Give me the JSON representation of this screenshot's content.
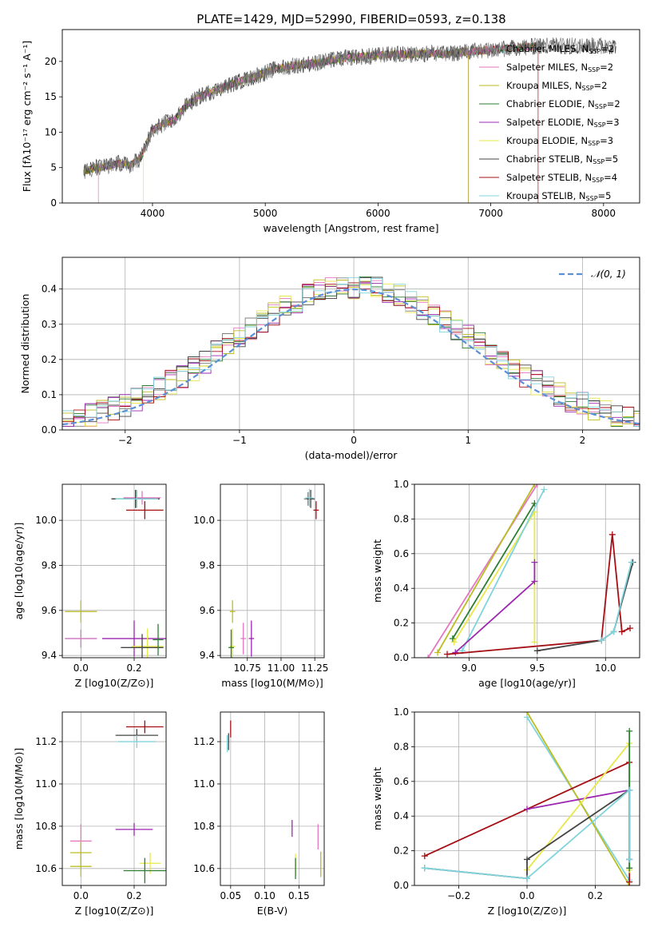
{
  "figure": {
    "title": "PLATE=1429, MJD=52990, FIBERID=0593, z=0.138"
  },
  "legend_entries": [
    {
      "name": "Chabrier MILES, N_SSP=2",
      "label": "Chabrier MILES, N",
      "nssp": "=2",
      "color": "#7f7f7f"
    },
    {
      "name": "Salpeter MILES, N_SSP=2",
      "label": "Salpeter MILES, N",
      "nssp": "=2",
      "color": "#e377c2"
    },
    {
      "name": "Kroupa MILES, N_SSP=2",
      "label": "Kroupa MILES, N",
      "nssp": "=2",
      "color": "#bcbd22"
    },
    {
      "name": "Chabrier ELODIE, N_SSP=2",
      "label": "Chabrier ELODIE, N",
      "nssp": "=2",
      "color": "#2e7d32"
    },
    {
      "name": "Salpeter ELODIE, N_SSP=3",
      "label": "Salpeter ELODIE, N",
      "nssp": "=3",
      "color": "#9c27b0"
    },
    {
      "name": "Kroupa ELODIE, N_SSP=3",
      "label": "Kroupa ELODIE, N",
      "nssp": "=3",
      "color": "#e8e84a"
    },
    {
      "name": "Chabrier STELIB, N_SSP=5",
      "label": "Chabrier STELIB, N",
      "nssp": "=5",
      "color": "#444444"
    },
    {
      "name": "Salpeter STELIB, N_SSP=4",
      "label": "Salpeter STELIB, N",
      "nssp": "=4",
      "color": "#a50f15"
    },
    {
      "name": "Kroupa STELIB, N_SSP=5",
      "label": "Kroupa STELIB, N",
      "nssp": "=5",
      "color": "#80d4dc"
    }
  ],
  "chart_data": [
    {
      "id": "spectrum",
      "type": "line",
      "xlabel": "wavelength [Angstrom, rest frame]",
      "ylabel": "Flux [fλ10⁻¹⁷ erg cm⁻² s⁻¹ A⁻¹]",
      "xlim": [
        3200,
        8320
      ],
      "ylim": [
        0,
        24.5
      ],
      "xticks": [
        4000,
        5000,
        6000,
        7000,
        8000
      ],
      "yticks": [
        0,
        5,
        10,
        15,
        20
      ],
      "continuum": {
        "x": [
          3400,
          3500,
          3600,
          3700,
          3800,
          3900,
          3950,
          4000,
          4100,
          4200,
          4300,
          4400,
          4500,
          4700,
          4900,
          5100,
          5300,
          5500,
          5700,
          5900,
          6100,
          6300,
          6500,
          6600,
          6800,
          7000,
          7200,
          7400,
          7500
        ],
        "y": [
          4.5,
          5.0,
          5.2,
          5.6,
          5.3,
          6.5,
          8.5,
          10.3,
          11.2,
          11.8,
          13.8,
          14.9,
          15.6,
          16.8,
          17.8,
          19.0,
          19.5,
          19.9,
          20.5,
          20.7,
          21.0,
          21.0,
          21.2,
          21.0,
          21.4,
          21.6,
          21.9,
          22.1,
          22.2
        ]
      },
      "observed_extent": [
        3390,
        8110
      ],
      "model_cutoffs": [
        {
          "series": "Kroupa ELODIE",
          "x": 3920
        },
        {
          "series": "Salpeter MILES",
          "x": 3520
        },
        {
          "series": "Kroupa MILES",
          "x": 6800
        },
        {
          "series": "Salpeter ELODIE",
          "x": 6800
        },
        {
          "series": "Salpeter STELIB",
          "x": 7420
        }
      ]
    },
    {
      "id": "residuals",
      "type": "line",
      "xlabel": "(data-model)/error",
      "ylabel": "Normed distribution",
      "xlim": [
        -2.55,
        2.5
      ],
      "ylim": [
        0,
        0.49
      ],
      "xticks": [
        -2,
        -1,
        0,
        1,
        2
      ],
      "yticks": [
        0.0,
        0.1,
        0.2,
        0.3,
        0.4
      ],
      "legend": "𝒩(0, 1)",
      "reference": {
        "name": "N(0,1)",
        "mean": 0,
        "sigma": 1
      },
      "histogram_bins": {
        "start": -2.55,
        "width": 0.1,
        "count": 51
      }
    },
    {
      "id": "age_vs_Z",
      "type": "scatter",
      "xlabel": "Z [log10(Z/Z⊙)]",
      "ylabel": "age  [log10(age/yr)]",
      "xlim": [
        -0.07,
        0.32
      ],
      "ylim": [
        9.39,
        10.16
      ],
      "xticks": [
        0.0,
        0.2
      ],
      "yticks": [
        9.4,
        9.6,
        9.8,
        10.0
      ],
      "points": [
        {
          "series": "Chabrier MILES",
          "x": 0.205,
          "xerr": 0.09,
          "y": 10.095,
          "yerr": 0.04
        },
        {
          "series": "Salpeter MILES",
          "x": 0.23,
          "xerr": 0.07,
          "y": 10.1,
          "yerr": 0.03
        },
        {
          "series": "Chabrier ELODIE",
          "x": 0.205,
          "xerr": 0.09,
          "y": 10.095,
          "yerr": 0.04
        },
        {
          "series": "Chabrier STELIB",
          "x": 0.205,
          "xerr": 0.09,
          "y": 10.095,
          "yerr": 0.04
        },
        {
          "series": "Kroupa STELIB",
          "x": 0.21,
          "xerr": 0.08,
          "y": 10.095,
          "yerr": 0.04
        },
        {
          "series": "Salpeter STELIB",
          "x": 0.24,
          "xerr": 0.07,
          "y": 10.045,
          "yerr": 0.04
        },
        {
          "series": "Kroupa MILES",
          "x": 0.0,
          "xerr": 0.06,
          "y": 9.595,
          "yerr": 0.05
        },
        {
          "series": "Salpeter ELODIE",
          "x": 0.2,
          "xerr": 0.12,
          "y": 9.475,
          "yerr": 0.08
        },
        {
          "series": "Kroupa ELODIE",
          "x": 0.25,
          "xerr": 0.06,
          "y": 9.44,
          "yerr": 0.08
        },
        {
          "series": "Chabrier STELIB",
          "x": 0.23,
          "xerr": 0.08,
          "y": 9.435,
          "yerr": 0.06
        },
        {
          "series": "Kroupa STELIB",
          "x": 0.0,
          "xerr": 0.06,
          "y": 9.475,
          "yerr": 0.04
        },
        {
          "series": "Chabrier ELODIE",
          "x": 0.29,
          "xerr": 0.02,
          "y": 9.47,
          "yerr": 0.07
        },
        {
          "series": "Salpeter MILES",
          "x": 0.0,
          "xerr": 0.06,
          "y": 9.475,
          "yerr": 0.04
        }
      ]
    },
    {
      "id": "age_vs_mass",
      "type": "scatter",
      "xlabel": "mass [log10(M/M⊙)]",
      "xlim": [
        10.55,
        11.32
      ],
      "ylim": [
        9.39,
        10.16
      ],
      "xticks": [
        10.75,
        11.0,
        11.25
      ],
      "xticklabels": [
        "10.75",
        "11.00",
        "11.25"
      ],
      "yticks": [
        9.4,
        9.6,
        9.8,
        10.0
      ],
      "points": [
        {
          "series": "Chabrier MILES",
          "x": 11.2,
          "xerr": 0.03,
          "y": 10.095,
          "yerr": 0.03
        },
        {
          "series": "Chabrier STELIB",
          "x": 11.22,
          "xerr": 0.03,
          "y": 10.095,
          "yerr": 0.04
        },
        {
          "series": "Kroupa STELIB",
          "x": 11.21,
          "xerr": 0.03,
          "y": 10.1,
          "yerr": 0.04
        },
        {
          "series": "Salpeter STELIB",
          "x": 11.26,
          "xerr": 0.02,
          "y": 10.045,
          "yerr": 0.04
        },
        {
          "series": "Kroupa MILES",
          "x": 10.64,
          "xerr": 0.02,
          "y": 9.595,
          "yerr": 0.05
        },
        {
          "series": "Salpeter ELODIE",
          "x": 10.78,
          "xerr": 0.02,
          "y": 9.475,
          "yerr": 0.08
        },
        {
          "series": "Kroupa ELODIE",
          "x": 10.64,
          "xerr": 0.02,
          "y": 9.44,
          "yerr": 0.08
        },
        {
          "series": "Chabrier ELODIE",
          "x": 10.63,
          "xerr": 0.02,
          "y": 9.435,
          "yerr": 0.08
        },
        {
          "series": "Salpeter MILES",
          "x": 10.72,
          "xerr": 0.02,
          "y": 9.475,
          "yerr": 0.07
        }
      ]
    },
    {
      "id": "weight_vs_age",
      "type": "line",
      "xlabel": "age  [log10(age/yr)]",
      "ylabel": "mass weight",
      "xlim": [
        8.6,
        10.25
      ],
      "ylim": [
        0,
        1.0
      ],
      "xticks": [
        9.0,
        9.5,
        10.0
      ],
      "yticks": [
        0.0,
        0.2,
        0.4,
        0.6,
        0.8,
        1.0
      ],
      "series": [
        {
          "name": "Salpeter MILES",
          "x": [
            8.7,
            9.5
          ],
          "y": [
            0.0,
            1.0
          ]
        },
        {
          "name": "Kroupa MILES",
          "x": [
            8.77,
            9.48
          ],
          "y": [
            0.03,
            1.0
          ]
        },
        {
          "name": "Chabrier ELODIE",
          "x": [
            8.88,
            9.48
          ],
          "y": [
            0.11,
            0.89
          ]
        },
        {
          "name": "Kroupa ELODIE",
          "x": [
            8.89,
            9.48,
            9.48
          ],
          "y": [
            0.09,
            0.84,
            0.09
          ]
        },
        {
          "name": "Kroupa STELIB",
          "x": [
            8.95,
            9.55
          ],
          "y": [
            0.04,
            0.97
          ]
        },
        {
          "name": "Salpeter ELODIE",
          "x": [
            8.9,
            9.48,
            9.48
          ],
          "y": [
            0.03,
            0.44,
            0.55
          ]
        },
        {
          "name": "Salpeter STELIB",
          "x": [
            8.84,
            9.97,
            10.05,
            10.12,
            10.18
          ],
          "y": [
            0.02,
            0.1,
            0.71,
            0.15,
            0.17
          ]
        },
        {
          "name": "Chabrier STELIB",
          "x": [
            9.5,
            9.97,
            10.06,
            10.2
          ],
          "y": [
            0.04,
            0.1,
            0.15,
            0.55
          ]
        },
        {
          "name": "Kroupa STELIB",
          "x": [
            9.97,
            10.06,
            10.19
          ],
          "y": [
            0.1,
            0.15,
            0.55
          ]
        }
      ]
    },
    {
      "id": "mass_vs_Z",
      "type": "scatter",
      "xlabel": "Z [log10(Z/Z⊙)]",
      "ylabel": "mass [log10(M/M⊙)]",
      "xlim": [
        -0.07,
        0.32
      ],
      "ylim": [
        10.52,
        11.34
      ],
      "xticks": [
        0.0,
        0.2
      ],
      "yticks": [
        10.6,
        10.8,
        11.0,
        11.2
      ],
      "points": [
        {
          "series": "Salpeter STELIB",
          "x": 0.24,
          "xerr": 0.07,
          "y": 11.27,
          "yerr": 0.03
        },
        {
          "series": "Chabrier STELIB",
          "x": 0.21,
          "xerr": 0.08,
          "y": 11.23,
          "yerr": 0.03
        },
        {
          "series": "Kroupa STELIB",
          "x": 0.21,
          "xerr": 0.07,
          "y": 11.2,
          "yerr": 0.03
        },
        {
          "series": "Salpeter MILES",
          "x": 0.0,
          "xerr": 0.04,
          "y": 10.73,
          "yerr": 0.08
        },
        {
          "series": "Salpeter ELODIE",
          "x": 0.2,
          "xerr": 0.07,
          "y": 10.785,
          "yerr": 0.03
        },
        {
          "series": "Kroupa MILES",
          "x": 0.0,
          "xerr": 0.04,
          "y": 10.675,
          "yerr": 0.06
        },
        {
          "series": "Kroupa ELODIE",
          "x": 0.26,
          "xerr": 0.04,
          "y": 10.625,
          "yerr": 0.05
        },
        {
          "series": "Kroupa MILES",
          "x": 0.0,
          "xerr": 0.04,
          "y": 10.61,
          "yerr": 0.05
        },
        {
          "series": "Chabrier ELODIE",
          "x": 0.24,
          "xerr": 0.08,
          "y": 10.59,
          "yerr": 0.06
        }
      ]
    },
    {
      "id": "mass_vs_ebv",
      "type": "scatter",
      "xlabel": "E(B-V)",
      "xlim": [
        0.035,
        0.187
      ],
      "ylim": [
        10.52,
        11.34
      ],
      "xticks": [
        0.05,
        0.1,
        0.15
      ],
      "yticks": [
        10.6,
        10.8,
        11.0,
        11.2
      ],
      "points": [
        {
          "series": "Salpeter STELIB",
          "x": 0.05,
          "y": 11.26,
          "yerr": 0.04
        },
        {
          "series": "Chabrier STELIB",
          "x": 0.047,
          "y": 11.2,
          "yerr": 0.04
        },
        {
          "series": "Kroupa STELIB",
          "x": 0.045,
          "y": 11.19,
          "yerr": 0.04
        },
        {
          "series": "Salpeter ELODIE",
          "x": 0.14,
          "y": 10.79,
          "yerr": 0.04
        },
        {
          "series": "Salpeter MILES",
          "x": 0.178,
          "y": 10.75,
          "yerr": 0.06
        },
        {
          "series": "Kroupa MILES",
          "x": 0.182,
          "y": 10.62,
          "yerr": 0.06
        },
        {
          "series": "Kroupa ELODIE",
          "x": 0.145,
          "y": 10.62,
          "yerr": 0.05
        },
        {
          "series": "Chabrier ELODIE",
          "x": 0.145,
          "y": 10.6,
          "yerr": 0.05
        }
      ]
    },
    {
      "id": "weight_vs_Z",
      "type": "line",
      "xlabel": "Z [log10(Z/Z⊙)]",
      "ylabel": "mass weight",
      "xlim": [
        -0.33,
        0.33
      ],
      "ylim": [
        0,
        1.0
      ],
      "xticks": [
        -0.2,
        0.0,
        0.2
      ],
      "xticklabels": [
        "−0.2",
        "0.0",
        "0.2"
      ],
      "yticks": [
        0.0,
        0.2,
        0.4,
        0.6,
        0.8,
        1.0
      ],
      "series": [
        {
          "name": "Kroupa STELIB",
          "x": [
            0.0,
            0.3
          ],
          "y": [
            0.97,
            0.03
          ]
        },
        {
          "name": "Kroupa MILES",
          "x": [
            0.0,
            0.3
          ],
          "y": [
            1.0,
            0.0
          ]
        },
        {
          "name": "Salpeter STELIB",
          "x": [
            -0.3,
            0.3,
            0.3
          ],
          "y": [
            0.17,
            0.71,
            0.02
          ]
        },
        {
          "name": "Salpeter ELODIE",
          "x": [
            0.0,
            0.3
          ],
          "y": [
            0.44,
            0.55
          ]
        },
        {
          "name": "Kroupa ELODIE",
          "x": [
            0.0,
            0.3,
            0.3
          ],
          "y": [
            0.09,
            0.82,
            0.09
          ]
        },
        {
          "name": "Chabrier ELODIE",
          "x": [
            0.3,
            0.3
          ],
          "y": [
            0.89,
            0.1
          ]
        },
        {
          "name": "Chabrier STELIB",
          "x": [
            -0.3,
            0.0,
            0.0,
            0.3,
            0.3
          ],
          "y": [
            0.1,
            0.04,
            0.15,
            0.55,
            0.15
          ]
        },
        {
          "name": "Kroupa STELIB",
          "x": [
            -0.3,
            0.0,
            0.3,
            0.3
          ],
          "y": [
            0.1,
            0.04,
            0.55,
            0.15
          ]
        }
      ]
    }
  ]
}
